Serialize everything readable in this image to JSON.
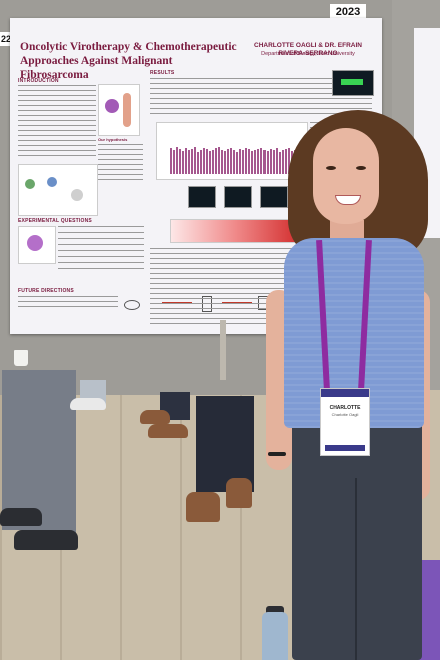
{
  "poster": {
    "year_tag": "2023",
    "board_number": "22",
    "title": "Oncolytic Virotherapy & Chemotherapeutic Approaches Against Malignant Fibrosarcoma",
    "authors": "CHARLOTTE OAGLI & DR. EFRAIN RIVERA-SERRANO",
    "department": "Department of Biology, Elon University",
    "sections": {
      "introduction": "INTRODUCTION",
      "results": "RESULTS",
      "experimental_questions": "EXPERIMENTAL QUESTIONS",
      "future_directions": "FUTURE DIRECTIONS"
    },
    "hypothesis_label": "Our hypothesis"
  },
  "badge": {
    "name": "CHARLOTTE",
    "subtitle": "Charlotte Oagli"
  },
  "colors": {
    "poster_accent": "#7a1b3f",
    "blouse": "#7f9bd4",
    "lanyard": "#8e2ca0"
  }
}
